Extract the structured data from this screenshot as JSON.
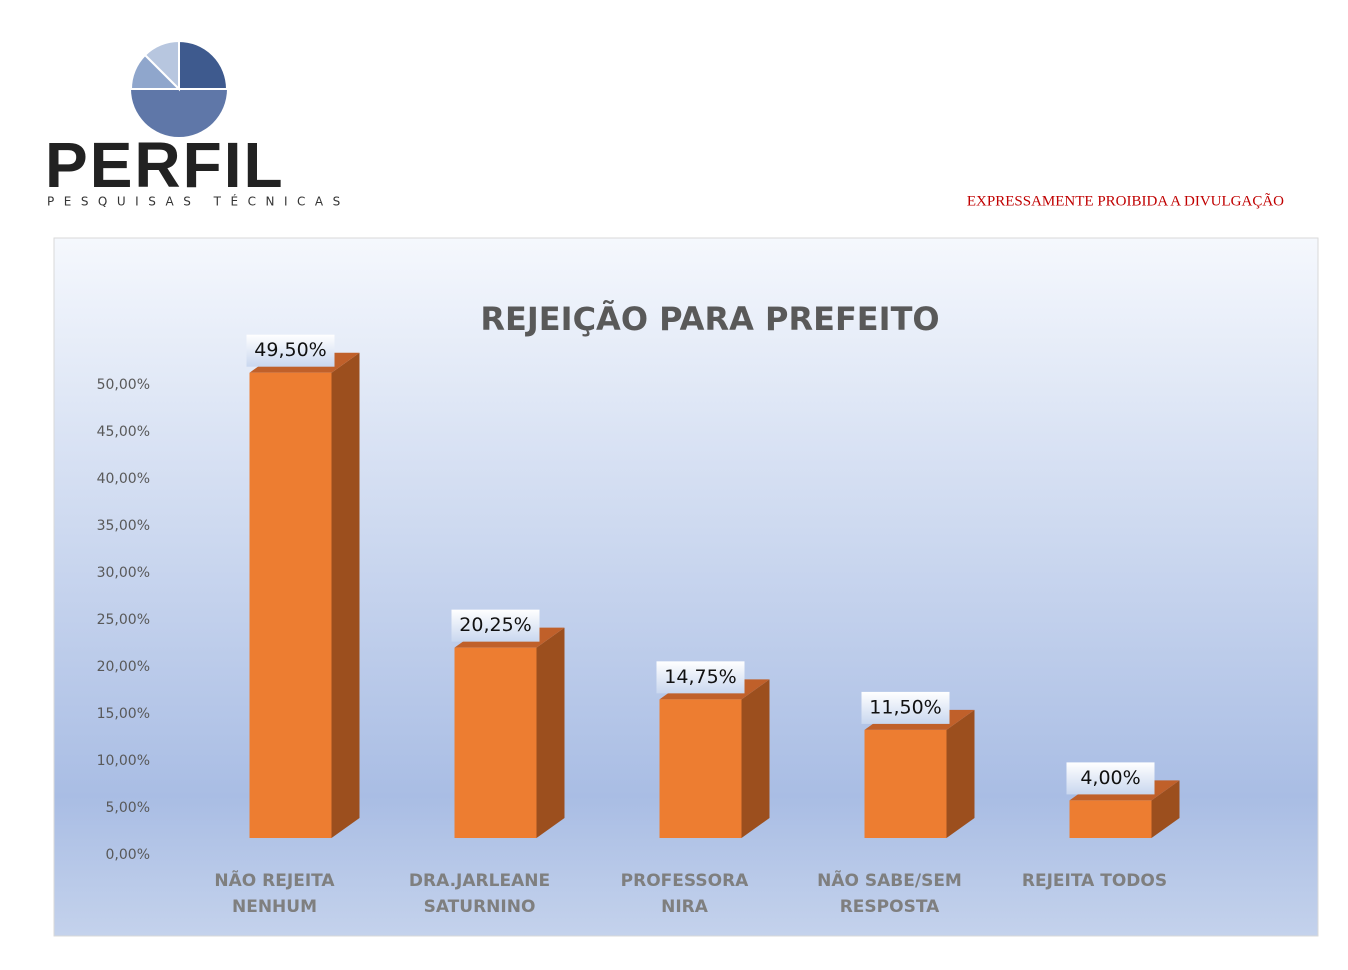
{
  "logo": {
    "name": "PERFIL",
    "tagline": "PESQUISAS TÉCNICAS"
  },
  "notice": "EXPRESSAMENTE PROIBIDA A DIVULGAÇÃO",
  "chart_data": {
    "type": "bar",
    "title": "REJEIÇÃO PARA PREFEITO",
    "categories": [
      "NÃO REJEITA NENHUM",
      "DRA.JARLEANE SATURNINO",
      "PROFESSORA NIRA",
      "NÃO SABE/SEM RESPOSTA",
      "REJEITA TODOS"
    ],
    "values": [
      49.5,
      20.25,
      14.75,
      11.5,
      4
    ],
    "value_labels": [
      "49,50%",
      "20,25%",
      "14,75%",
      "11,50%",
      "4,00%"
    ],
    "color": "#ed7d31",
    "ylim": [
      0,
      50
    ],
    "yticks": [
      {
        "value": 0,
        "label": "0,00%"
      },
      {
        "value": 5,
        "label": "5,00%"
      },
      {
        "value": 10,
        "label": "10,00%"
      },
      {
        "value": 15,
        "label": "15,00%"
      },
      {
        "value": 20,
        "label": "20,00%"
      },
      {
        "value": 25,
        "label": "25,00%"
      },
      {
        "value": 30,
        "label": "30,00%"
      },
      {
        "value": 35,
        "label": "35,00%"
      },
      {
        "value": 40,
        "label": "40,00%"
      },
      {
        "value": 45,
        "label": "45,00%"
      },
      {
        "value": 50,
        "label": "50,00%"
      }
    ],
    "grid": false
  }
}
